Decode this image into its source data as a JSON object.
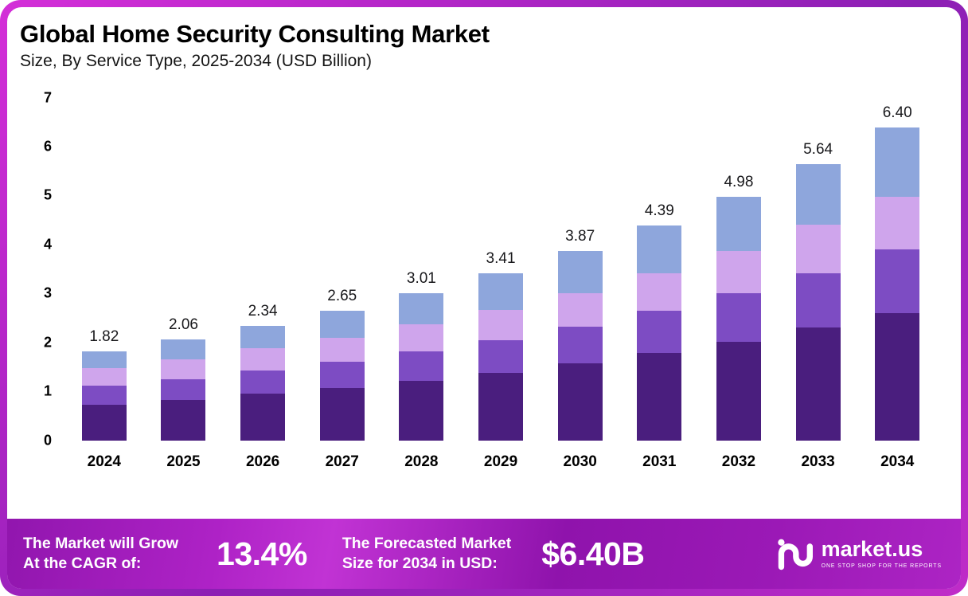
{
  "header": {
    "title": "Global Home Security Consulting Market",
    "subtitle": "Size, By Service Type, 2025-2034 (USD Billion)"
  },
  "chart_data": {
    "type": "bar",
    "stacked": true,
    "title": "Global Home Security Consulting Market",
    "subtitle": "Size, By Service Type, 2025-2034 (USD Billion)",
    "unit": "USD Billion",
    "categories": [
      "2024",
      "2025",
      "2026",
      "2027",
      "2028",
      "2029",
      "2030",
      "2031",
      "2032",
      "2033",
      "2034"
    ],
    "totals": [
      1.82,
      2.06,
      2.34,
      2.65,
      3.01,
      3.41,
      3.87,
      4.39,
      4.98,
      5.64,
      6.4
    ],
    "total_labels": [
      "1.82",
      "2.06",
      "2.34",
      "2.65",
      "3.01",
      "3.41",
      "3.87",
      "4.39",
      "4.98",
      "5.64",
      "6.40"
    ],
    "series": [
      {
        "name": "segment-1",
        "color": "#4a1e7e",
        "values": [
          0.73,
          0.83,
          0.95,
          1.07,
          1.22,
          1.38,
          1.57,
          1.78,
          2.02,
          2.3,
          2.6
        ]
      },
      {
        "name": "segment-2",
        "color": "#7d4cc3",
        "values": [
          0.38,
          0.42,
          0.47,
          0.53,
          0.6,
          0.67,
          0.76,
          0.87,
          0.99,
          1.12,
          1.3
        ]
      },
      {
        "name": "segment-3",
        "color": "#cfa5ec",
        "values": [
          0.36,
          0.4,
          0.46,
          0.5,
          0.55,
          0.61,
          0.68,
          0.76,
          0.86,
          0.98,
          1.07
        ]
      },
      {
        "name": "segment-4",
        "color": "#8ea6dc",
        "values": [
          0.35,
          0.41,
          0.46,
          0.55,
          0.64,
          0.75,
          0.86,
          0.98,
          1.11,
          1.24,
          1.43
        ]
      }
    ],
    "ylim": [
      0,
      7
    ],
    "yticks": [
      0,
      1,
      2,
      3,
      4,
      5,
      6,
      7
    ],
    "grid": false,
    "legend_position": "none"
  },
  "footer": {
    "cagr_label_line1": "The Market will Grow",
    "cagr_label_line2": "At the CAGR of:",
    "cagr_value": "13.4%",
    "forecast_label_line1": "The Forecasted Market",
    "forecast_label_line2": "Size for 2034 in USD:",
    "forecast_value": "$6.40B",
    "brand": "market.us",
    "brand_tagline": "ONE STOP SHOP FOR THE REPORTS"
  },
  "colors": {
    "frame_gradient_start": "#d42fd8",
    "frame_gradient_end": "#8c1fb4",
    "banner_gradient_start": "#9116ae",
    "banner_gradient_end": "#c133d4",
    "background": "#ffffff",
    "text": "#000000"
  }
}
